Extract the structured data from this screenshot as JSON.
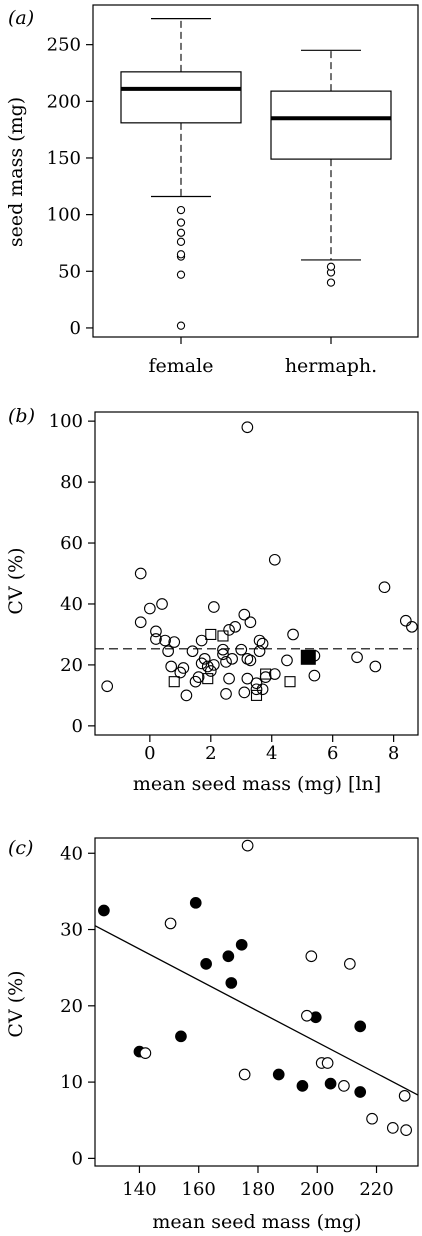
{
  "chart_data": [
    {
      "panel_label": "(a)",
      "type": "box",
      "categories": [
        "female",
        "hermaph."
      ],
      "ylabel": "seed mass (mg)",
      "ylim": [
        -8,
        285
      ],
      "yticks": [
        0,
        50,
        100,
        150,
        200,
        250
      ],
      "boxes": [
        {
          "category": "female",
          "whisker_low": 116,
          "q1": 181,
          "median": 211,
          "q3": 226,
          "whisker_high": 273,
          "outliers": [
            2,
            47,
            63,
            65,
            76,
            84,
            93,
            104
          ]
        },
        {
          "category": "hermaph.",
          "whisker_low": 60,
          "q1": 149,
          "median": 185,
          "q3": 209,
          "whisker_high": 245,
          "outliers": [
            40,
            49,
            54
          ]
        }
      ]
    },
    {
      "panel_label": "(b)",
      "type": "scatter",
      "xlabel": "mean seed mass (mg) [ln]",
      "ylabel": "CV (%)",
      "xlim": [
        -1.8,
        8.8
      ],
      "ylim": [
        -3,
        103
      ],
      "xticks": [
        0,
        2,
        4,
        6,
        8
      ],
      "yticks": [
        0,
        20,
        40,
        60,
        80,
        100
      ],
      "reference_line_y": 25.3,
      "series": [
        {
          "marker": "open-circle",
          "points": [
            [
              -1.4,
              13
            ],
            [
              -0.3,
              34
            ],
            [
              -0.3,
              50
            ],
            [
              0.0,
              38.5
            ],
            [
              0.2,
              31
            ],
            [
              0.2,
              28.5
            ],
            [
              0.4,
              40
            ],
            [
              0.5,
              28
            ],
            [
              0.6,
              24.5
            ],
            [
              0.7,
              19.5
            ],
            [
              0.8,
              27.5
            ],
            [
              1.0,
              17.5
            ],
            [
              1.1,
              19
            ],
            [
              1.2,
              10
            ],
            [
              1.4,
              24.5
            ],
            [
              1.5,
              14.5
            ],
            [
              1.6,
              16
            ],
            [
              1.7,
              28
            ],
            [
              1.7,
              20.5
            ],
            [
              1.8,
              22
            ],
            [
              1.9,
              19.5
            ],
            [
              2.0,
              18
            ],
            [
              2.1,
              20
            ],
            [
              2.1,
              39
            ],
            [
              2.4,
              23.5
            ],
            [
              2.4,
              25
            ],
            [
              2.5,
              21
            ],
            [
              2.5,
              10.5
            ],
            [
              2.6,
              31.5
            ],
            [
              2.6,
              15.5
            ],
            [
              2.7,
              22
            ],
            [
              2.8,
              32.5
            ],
            [
              3.0,
              25
            ],
            [
              3.1,
              36.5
            ],
            [
              3.1,
              11
            ],
            [
              3.2,
              98
            ],
            [
              3.2,
              22
            ],
            [
              3.2,
              15.5
            ],
            [
              3.3,
              34
            ],
            [
              3.3,
              21.5
            ],
            [
              3.5,
              14
            ],
            [
              3.5,
              12
            ],
            [
              3.6,
              28
            ],
            [
              3.6,
              24.5
            ],
            [
              3.7,
              27
            ],
            [
              3.7,
              12
            ],
            [
              3.8,
              16
            ],
            [
              4.1,
              54.5
            ],
            [
              4.1,
              17
            ],
            [
              4.5,
              21.5
            ],
            [
              4.7,
              30
            ],
            [
              5.4,
              16.5
            ],
            [
              5.4,
              23
            ],
            [
              6.8,
              22.5
            ],
            [
              7.4,
              19.5
            ],
            [
              7.7,
              45.5
            ],
            [
              8.4,
              34.5
            ],
            [
              8.6,
              32.5
            ]
          ]
        },
        {
          "marker": "open-square",
          "points": [
            [
              0.8,
              14.5
            ],
            [
              1.9,
              15.5
            ],
            [
              2.0,
              30
            ],
            [
              2.4,
              29.5
            ],
            [
              3.5,
              10
            ],
            [
              3.8,
              17
            ],
            [
              4.6,
              14.5
            ],
            [
              5.2,
              22.5
            ]
          ]
        },
        {
          "marker": "filled-square",
          "points": [
            [
              5.2,
              22.5
            ]
          ]
        }
      ]
    },
    {
      "panel_label": "(c)",
      "type": "scatter",
      "xlabel": "mean seed mass (mg)",
      "ylabel": "CV (%)",
      "xlim": [
        125,
        234
      ],
      "ylim": [
        -1,
        42
      ],
      "xticks": [
        140,
        160,
        180,
        200,
        220
      ],
      "yticks": [
        0,
        10,
        20,
        30,
        40
      ],
      "regression_line": [
        [
          125,
          30.5
        ],
        [
          234,
          8.3
        ]
      ],
      "series": [
        {
          "marker": "filled-circle",
          "points": [
            [
              128,
              32.5
            ],
            [
              140,
              14
            ],
            [
              154,
              16
            ],
            [
              159,
              33.5
            ],
            [
              162.5,
              25.5
            ],
            [
              170,
              26.5
            ],
            [
              171,
              23
            ],
            [
              174.5,
              28
            ],
            [
              187,
              11
            ],
            [
              195,
              9.5
            ],
            [
              199.5,
              18.5
            ],
            [
              204.5,
              9.8
            ],
            [
              214.5,
              17.3
            ],
            [
              214.5,
              8.7
            ]
          ]
        },
        {
          "marker": "open-circle",
          "points": [
            [
              142,
              13.8
            ],
            [
              150.5,
              30.8
            ],
            [
              175.5,
              11
            ],
            [
              176.5,
              41
            ],
            [
              196.5,
              18.7
            ],
            [
              198,
              26.5
            ],
            [
              201.5,
              12.5
            ],
            [
              203.5,
              12.5
            ],
            [
              209,
              9.5
            ],
            [
              211,
              25.5
            ],
            [
              218.5,
              5.2
            ],
            [
              225.5,
              4
            ],
            [
              229.5,
              8.2
            ],
            [
              230,
              3.7
            ]
          ]
        }
      ]
    }
  ]
}
